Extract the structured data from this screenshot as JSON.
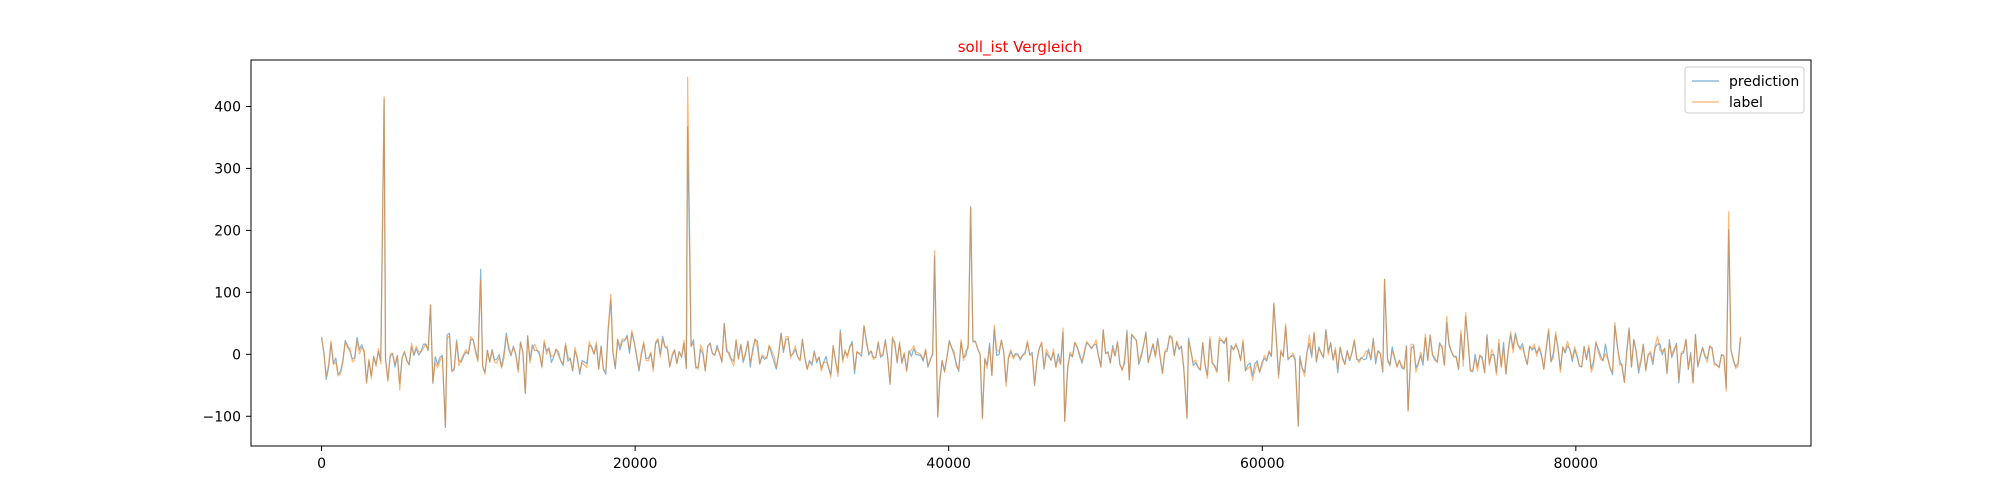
{
  "colors": {
    "prediction": "#1f77b4",
    "label": "#ff7f0e",
    "title": "#ff0000"
  },
  "chart_data": {
    "type": "line",
    "title": "soll_ist Vergleich",
    "xlabel": "",
    "ylabel": "",
    "xlim": [
      -4500,
      95000
    ],
    "ylim": [
      -148,
      475
    ],
    "xticks": [
      0,
      20000,
      40000,
      60000,
      80000
    ],
    "xtick_labels": [
      "0",
      "20000",
      "40000",
      "60000",
      "80000"
    ],
    "yticks": [
      -100,
      0,
      100,
      200,
      300,
      400
    ],
    "ytick_labels": [
      "−100",
      "0",
      "100",
      "200",
      "300",
      "400"
    ],
    "grid": false,
    "legend": {
      "position": "top-right",
      "entries": [
        "prediction",
        "label"
      ]
    },
    "x_range": [
      0,
      90500
    ],
    "n_points": 600,
    "spikes": [
      {
        "x": 3990,
        "prediction": 412,
        "label": 416
      },
      {
        "x": 10150,
        "prediction": 137,
        "label": 120
      },
      {
        "x": 18450,
        "prediction": 88,
        "label": 97
      },
      {
        "x": 23350,
        "prediction": 367,
        "label": 447
      },
      {
        "x": 39100,
        "prediction": 158,
        "label": 167
      },
      {
        "x": 41400,
        "prediction": 238,
        "label": 236
      },
      {
        "x": 67800,
        "prediction": 121,
        "label": 121
      },
      {
        "x": 89750,
        "prediction": 201,
        "label": 230
      },
      {
        "x": 7900,
        "prediction": -118,
        "label": -118
      },
      {
        "x": 39300,
        "prediction": -100,
        "label": -102
      },
      {
        "x": 42150,
        "prediction": -102,
        "label": -104
      },
      {
        "x": 47400,
        "prediction": -108,
        "label": -108
      },
      {
        "x": 55200,
        "prediction": -102,
        "label": -104
      },
      {
        "x": 62300,
        "prediction": -116,
        "label": -116
      },
      {
        "x": 69300,
        "prediction": -90,
        "label": -92
      }
    ],
    "series": [
      {
        "name": "prediction",
        "noise_amplitude": 28,
        "center": 0
      },
      {
        "name": "label",
        "noise_amplitude": 30,
        "center": 0
      }
    ]
  }
}
